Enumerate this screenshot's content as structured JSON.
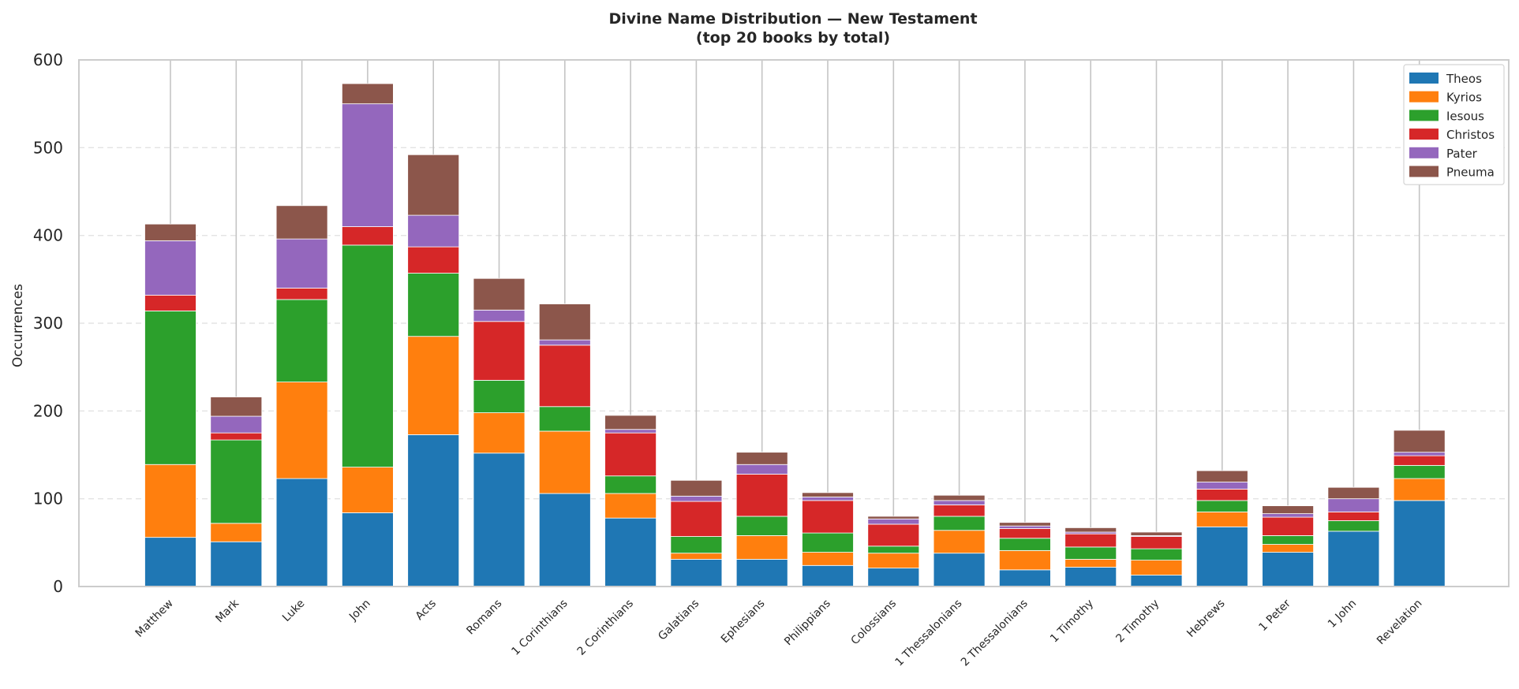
{
  "chart_data": {
    "type": "bar",
    "stacked": true,
    "title": "Divine Name Distribution — New Testament",
    "subtitle": "(top 20 books by total)",
    "xlabel": "",
    "ylabel": "Occurrences",
    "ylim": [
      0,
      600
    ],
    "yticks": [
      0,
      100,
      200,
      300,
      400,
      500,
      600
    ],
    "grid": "horizontal-dashed",
    "legend_position": "top-right",
    "categories": [
      "Matthew",
      "Mark",
      "Luke",
      "John",
      "Acts",
      "Romans",
      "1 Corinthians",
      "2 Corinthians",
      "Galatians",
      "Ephesians",
      "Philippians",
      "Colossians",
      "1 Thessalonians",
      "2 Thessalonians",
      "1 Timothy",
      "2 Timothy",
      "Hebrews",
      "1 Peter",
      "1 John",
      "Revelation"
    ],
    "series": [
      {
        "name": "Theos",
        "color": "#1f77b4",
        "values": [
          56,
          51,
          123,
          84,
          173,
          152,
          106,
          78,
          31,
          31,
          24,
          21,
          38,
          19,
          22,
          13,
          68,
          39,
          63,
          98
        ]
      },
      {
        "name": "Kyrios",
        "color": "#ff7f0e",
        "values": [
          83,
          21,
          110,
          52,
          112,
          46,
          71,
          28,
          7,
          27,
          15,
          17,
          26,
          22,
          9,
          17,
          17,
          9,
          0,
          25
        ]
      },
      {
        "name": "Iesous",
        "color": "#2ca02c",
        "values": [
          175,
          95,
          94,
          253,
          72,
          37,
          28,
          20,
          19,
          22,
          22,
          8,
          16,
          14,
          14,
          13,
          13,
          10,
          12,
          15
        ]
      },
      {
        "name": "Christos",
        "color": "#d62728",
        "values": [
          18,
          8,
          13,
          21,
          30,
          67,
          70,
          49,
          40,
          48,
          37,
          25,
          13,
          11,
          15,
          14,
          13,
          21,
          10,
          11
        ]
      },
      {
        "name": "Pater",
        "color": "#9467bd",
        "values": [
          62,
          19,
          56,
          140,
          36,
          13,
          6,
          4,
          6,
          11,
          4,
          6,
          5,
          3,
          2,
          1,
          8,
          4,
          15,
          4
        ]
      },
      {
        "name": "Pneuma",
        "color": "#8c564b",
        "values": [
          19,
          22,
          38,
          23,
          69,
          36,
          41,
          16,
          18,
          14,
          5,
          3,
          6,
          4,
          5,
          4,
          13,
          9,
          13,
          25
        ]
      }
    ]
  }
}
